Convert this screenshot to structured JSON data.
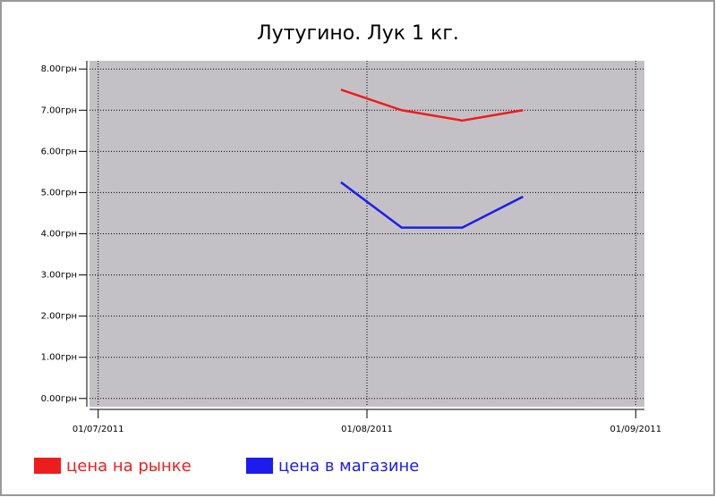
{
  "chart_data": {
    "type": "line",
    "title": "Лутугино. Лук 1 кг.",
    "x": [
      "2011-07-29",
      "2011-08-05",
      "2011-08-12",
      "2011-08-19"
    ],
    "series": [
      {
        "name": "цена на рынке",
        "color": "#ee1c1c",
        "values": [
          7.5,
          7.0,
          6.75,
          7.0
        ]
      },
      {
        "name": "цена в магазине",
        "color": "#1c1cee",
        "values": [
          5.25,
          4.15,
          4.15,
          4.9
        ]
      }
    ],
    "xlim": [
      "2011-06-30",
      "2011-09-02"
    ],
    "xticks": [
      {
        "value": "2011-07-01",
        "label": "01/07/2011"
      },
      {
        "value": "2011-08-01",
        "label": "01/08/2011"
      },
      {
        "value": "2011-09-01",
        "label": "01/09/2011"
      }
    ],
    "ylim": [
      -0.2,
      8.2
    ],
    "yticks": [
      {
        "value": 0,
        "label": "0.00грн"
      },
      {
        "value": 1,
        "label": "1.00грн"
      },
      {
        "value": 2,
        "label": "2.00грн"
      },
      {
        "value": 3,
        "label": "3.00грн"
      },
      {
        "value": 4,
        "label": "4.00грн"
      },
      {
        "value": 5,
        "label": "5.00грн"
      },
      {
        "value": 6,
        "label": "6.00грн"
      },
      {
        "value": 7,
        "label": "7.00грн"
      },
      {
        "value": 8,
        "label": "8.00грн"
      }
    ],
    "grid": true,
    "legend": "bottom-left"
  }
}
